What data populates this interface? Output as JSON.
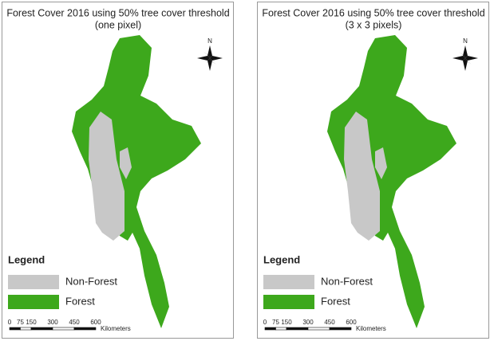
{
  "panels": [
    {
      "title": "Forest Cover 2016 using 50% tree cover threshold",
      "subtitle": "(one pixel)",
      "north": "N",
      "legend": {
        "title": "Legend",
        "items": [
          {
            "label": "Non-Forest",
            "color": "#c8c8c8"
          },
          {
            "label": "Forest",
            "color": "#3da81c"
          }
        ]
      },
      "scale": {
        "ticks": [
          0,
          75,
          150,
          300,
          450,
          600
        ],
        "unit": "Kilometers"
      }
    },
    {
      "title": "Forest Cover 2016 using 50% tree cover threshold",
      "subtitle": "(3 x 3 pixels)",
      "north": "N",
      "legend": {
        "title": "Legend",
        "items": [
          {
            "label": "Non-Forest",
            "color": "#c8c8c8"
          },
          {
            "label": "Forest",
            "color": "#3da81c"
          }
        ]
      },
      "scale": {
        "ticks": [
          0,
          75,
          150,
          300,
          450,
          600
        ],
        "unit": "Kilometers"
      }
    }
  ]
}
